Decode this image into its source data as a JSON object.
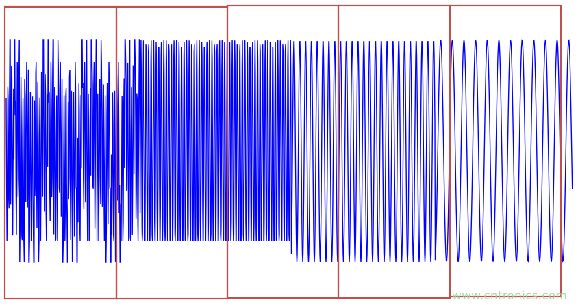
{
  "chart_data": {
    "type": "line",
    "title": "",
    "xlabel": "",
    "ylabel": "",
    "grid": false,
    "axes_visible": false,
    "series": [
      {
        "description_free": true,
        "segments": [
          {
            "window": 1,
            "frequency": "highest",
            "levels": "multi-level"
          },
          {
            "window": 2,
            "frequency": "high",
            "levels": "multi-level"
          },
          {
            "window": 3,
            "frequency": "high"
          },
          {
            "window": 4,
            "frequency": "medium"
          },
          {
            "window": 5,
            "frequency": "low"
          }
        ]
      }
    ],
    "highlight_windows": 5,
    "line_color": "#0000ff",
    "window_color": "#c0504d"
  },
  "watermark": "www.cntronics.com"
}
